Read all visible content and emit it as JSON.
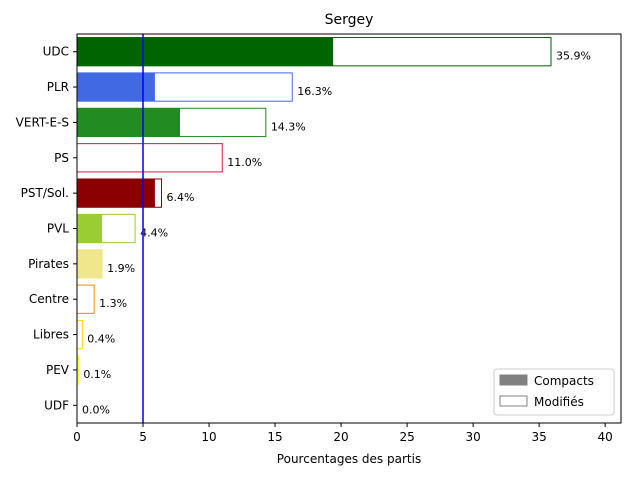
{
  "chart_data": {
    "type": "bar",
    "orientation": "horizontal",
    "stacked": true,
    "title": "Sergey",
    "xlabel": "Pourcentages des partis",
    "ylabel": "",
    "xlim": [
      0,
      41.2
    ],
    "xticks": [
      0,
      5,
      10,
      15,
      20,
      25,
      30,
      35,
      40
    ],
    "categories": [
      "UDC",
      "PLR",
      "VERT-E-S",
      "PS",
      "PST/Sol.",
      "PVL",
      "Pirates",
      "Centre",
      "Libres",
      "PEV",
      "UDF"
    ],
    "compact_values": [
      19.4,
      5.9,
      7.8,
      0.0,
      5.9,
      1.9,
      1.9,
      0.0,
      0.0,
      0.0,
      0.0
    ],
    "total_values": [
      35.9,
      16.3,
      14.3,
      11.0,
      6.4,
      4.4,
      1.9,
      1.3,
      0.4,
      0.1,
      0.0
    ],
    "value_labels": [
      "35.9%",
      "16.3%",
      "14.3%",
      "11.0%",
      "6.4%",
      "4.4%",
      "1.9%",
      "1.3%",
      "0.4%",
      "0.1%",
      "0.0%"
    ],
    "colors": [
      "#006400",
      "#4169e1",
      "#228b22",
      "#dc143c",
      "#8b0000",
      "#9acd32",
      "#f0e68c",
      "#ff8c00",
      "#ffd700",
      "#ffff00",
      "#8b008b"
    ],
    "reference_line": {
      "x": 5,
      "color": "#0000ff"
    },
    "legend": {
      "position": "bottom-right",
      "entries": [
        {
          "label": "Compacts",
          "style": "filled",
          "color": "#808080"
        },
        {
          "label": "Modifiés",
          "style": "outline",
          "color": "#808080"
        }
      ]
    },
    "grid": false
  }
}
